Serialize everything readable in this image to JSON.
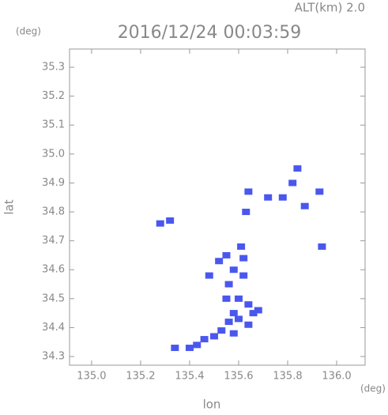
{
  "chart_data": {
    "type": "scatter",
    "header": "ALT(km) 2.0",
    "title": "2016/12/24 00:03:59",
    "x_unit": "(deg)",
    "y_unit": "(deg)",
    "x_label": "lon",
    "y_label": "lat",
    "color": "#4a57ee",
    "x": [
      135.84,
      135.82,
      135.93,
      135.78,
      135.72,
      135.64,
      135.87,
      135.63,
      135.28,
      135.32,
      135.94,
      135.55,
      135.52,
      135.61,
      135.62,
      135.58,
      135.48,
      135.62,
      135.56,
      135.55,
      135.6,
      135.64,
      135.66,
      135.6,
      135.56,
      135.64,
      135.53,
      135.58,
      135.5,
      135.46,
      135.43,
      135.4,
      135.34,
      135.68,
      135.58
    ],
    "values": [
      34.95,
      34.9,
      34.87,
      34.85,
      34.85,
      34.87,
      34.82,
      34.8,
      34.76,
      34.77,
      34.68,
      34.65,
      34.63,
      34.68,
      34.64,
      34.6,
      34.58,
      34.58,
      34.55,
      34.5,
      34.5,
      34.48,
      34.45,
      34.43,
      34.42,
      34.41,
      34.39,
      34.38,
      34.37,
      34.36,
      34.34,
      34.33,
      34.33,
      34.46,
      34.45
    ],
    "xlim": [
      134.91,
      136.116
    ],
    "ylim": [
      34.27,
      35.363
    ],
    "xticks": [
      {
        "value": 135,
        "label": "135.0"
      },
      135.2,
      135.4,
      135.6,
      135.8,
      {
        "value": 136,
        "label": "136.0"
      }
    ],
    "yticks": [
      34.3,
      34.4,
      34.5,
      34.6,
      34.7,
      34.8,
      34.9,
      {
        "value": 35,
        "label": "35.0"
      },
      35.1,
      35.2,
      35.3
    ]
  }
}
